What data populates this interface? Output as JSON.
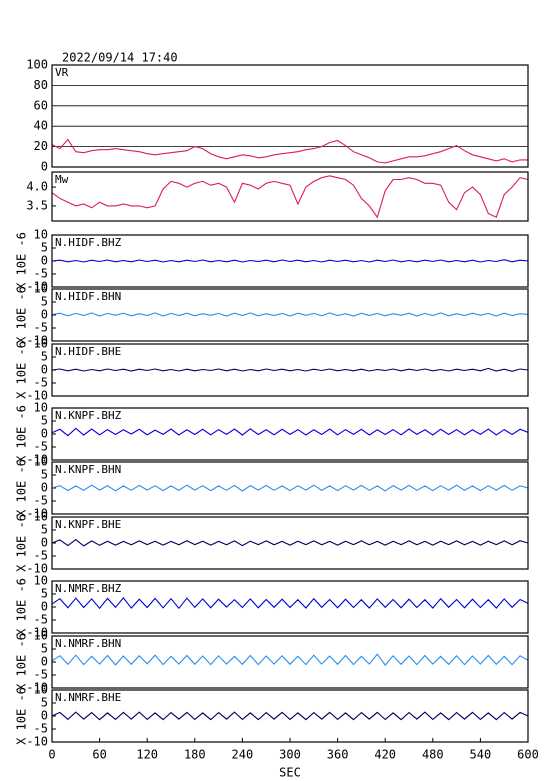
{
  "title": "2022/09/14 17:40",
  "x_label": "SEC",
  "xlim": [
    0,
    600
  ],
  "xticks": [
    0,
    60,
    120,
    180,
    240,
    300,
    360,
    420,
    480,
    540,
    600
  ],
  "x": [
    0,
    10,
    20,
    30,
    40,
    50,
    60,
    70,
    80,
    90,
    100,
    110,
    120,
    130,
    140,
    150,
    160,
    170,
    180,
    190,
    200,
    210,
    220,
    230,
    240,
    250,
    260,
    270,
    280,
    290,
    300,
    310,
    320,
    330,
    340,
    350,
    360,
    370,
    380,
    390,
    400,
    410,
    420,
    430,
    440,
    450,
    460,
    470,
    480,
    490,
    500,
    510,
    520,
    530,
    540,
    550,
    560,
    570,
    580,
    590,
    600
  ],
  "chart_data": [
    {
      "type": "line",
      "ylim": [
        0,
        100
      ],
      "yticks": [
        0,
        20,
        40,
        60,
        80,
        100
      ],
      "grid": true,
      "series": [
        {
          "name": "VR",
          "color": "#dc1e50",
          "values": [
            22,
            18,
            27,
            15,
            14,
            16,
            17,
            17,
            18,
            17,
            16,
            15,
            13,
            12,
            13,
            14,
            15,
            16,
            20,
            18,
            13,
            10,
            8,
            10,
            12,
            11,
            9,
            10,
            12,
            13,
            14,
            15,
            17,
            18,
            20,
            24,
            26,
            21,
            15,
            12,
            9,
            5,
            4,
            6,
            8,
            10,
            10,
            11,
            13,
            15,
            18,
            21,
            16,
            12,
            10,
            8,
            6,
            8,
            5,
            7,
            7
          ]
        }
      ]
    },
    {
      "type": "line",
      "ylim": [
        3.1,
        4.4
      ],
      "yticks": [
        3.5,
        {
          "value": 4,
          "label": "4.0"
        }
      ],
      "grid": false,
      "series": [
        {
          "name": "Mw",
          "color": "#dc1e50",
          "values": [
            3.85,
            3.7,
            3.6,
            3.5,
            3.55,
            3.45,
            3.6,
            3.5,
            3.5,
            3.55,
            3.5,
            3.5,
            3.45,
            3.5,
            3.95,
            4.15,
            4.1,
            4.0,
            4.1,
            4.15,
            4.05,
            4.1,
            4.0,
            3.6,
            4.1,
            4.05,
            3.95,
            4.1,
            4.15,
            4.1,
            4.05,
            3.55,
            4.0,
            4.15,
            4.25,
            4.3,
            4.25,
            4.2,
            4.05,
            3.7,
            3.5,
            3.2,
            3.9,
            4.2,
            4.2,
            4.25,
            4.2,
            4.1,
            4.1,
            4.05,
            3.6,
            3.4,
            3.85,
            4.0,
            3.8,
            3.3,
            3.2,
            3.8,
            4.0,
            4.25,
            4.2
          ]
        }
      ]
    },
    {
      "type": "line",
      "ylim": [
        -10,
        10
      ],
      "yticks": [
        -10,
        -5,
        0,
        5,
        10
      ],
      "y_label": "X 10E -6",
      "series": [
        {
          "name": "N.HIDF.BHZ",
          "color": "#0000d0",
          "values": [
            0,
            0.3,
            -0.3,
            0.2,
            -0.4,
            0.3,
            -0.2,
            0.4,
            -0.3,
            0.2,
            -0.3,
            0.4,
            -0.2,
            0.3,
            -0.4,
            0.2,
            -0.3,
            0.3,
            -0.2,
            0.4,
            -0.3,
            0.2,
            -0.3,
            0.3,
            -0.4,
            0.2,
            -0.2,
            0.3,
            -0.3,
            0.4,
            -0.2,
            0.3,
            -0.3,
            0.2,
            -0.4,
            0.3,
            -0.2,
            0.3,
            -0.3,
            0.2,
            -0.4,
            0.3,
            -0.2,
            0.4,
            -0.3,
            0.2,
            -0.3,
            0.3,
            -0.2,
            0.4,
            -0.3,
            0.2,
            -0.3,
            0.3,
            -0.4,
            0.2,
            -0.2,
            0.5,
            -0.3,
            0.3,
            0
          ]
        }
      ]
    },
    {
      "type": "line",
      "ylim": [
        -10,
        10
      ],
      "yticks": [
        -10,
        -5,
        0,
        5,
        10
      ],
      "y_label": "X 10E -6",
      "series": [
        {
          "name": "N.HIDF.BHN",
          "color": "#2a8cf0",
          "values": [
            0.2,
            0.7,
            -0.3,
            0.6,
            -0.2,
            0.8,
            -0.4,
            0.6,
            -0.1,
            0.7,
            -0.3,
            0.5,
            -0.2,
            0.8,
            -0.4,
            0.6,
            -0.2,
            0.7,
            -0.3,
            0.5,
            -0.1,
            0.6,
            -0.4,
            0.7,
            -0.2,
            0.8,
            -0.3,
            0.5,
            -0.2,
            0.6,
            -0.4,
            0.7,
            -0.1,
            0.6,
            -0.3,
            0.8,
            -0.2,
            0.5,
            -0.4,
            0.7,
            -0.2,
            0.6,
            -0.3,
            0.5,
            -0.1,
            0.7,
            -0.4,
            0.6,
            -0.2,
            0.8,
            -0.3,
            0.5,
            -0.2,
            0.7,
            -0.1,
            0.6,
            -0.4,
            0.7,
            -0.2,
            0.5,
            0.2
          ]
        }
      ]
    },
    {
      "type": "line",
      "ylim": [
        -10,
        10
      ],
      "yticks": [
        -10,
        -5,
        0,
        5,
        10
      ],
      "y_label": "X 10E -6",
      "series": [
        {
          "name": "N.HIDF.BHE",
          "color": "#000060",
          "values": [
            0,
            0.4,
            -0.3,
            0.3,
            -0.4,
            0.2,
            -0.3,
            0.4,
            -0.2,
            0.3,
            -0.4,
            0.3,
            -0.2,
            0.4,
            -0.3,
            0.2,
            -0.4,
            0.3,
            -0.3,
            0.2,
            -0.2,
            0.4,
            -0.3,
            0.3,
            -0.4,
            0.2,
            -0.3,
            0.4,
            -0.2,
            0.3,
            -0.3,
            0.2,
            -0.4,
            0.3,
            -0.2,
            0.4,
            -0.3,
            0.2,
            -0.3,
            0.3,
            -0.4,
            0.2,
            -0.2,
            0.4,
            -0.3,
            0.3,
            -0.2,
            0.4,
            -0.3,
            0.2,
            -0.4,
            0.3,
            -0.2,
            0.3,
            -0.3,
            0.6,
            -0.4,
            0.3,
            -0.5,
            0.4,
            0
          ]
        }
      ]
    },
    {
      "type": "line",
      "ylim": [
        -10,
        10
      ],
      "yticks": [
        -10,
        -5,
        0,
        5,
        10
      ],
      "y_label": "X 10E -6",
      "series": [
        {
          "name": "N.KNPF.BHZ",
          "color": "#0000d0",
          "values": [
            0.5,
            1.8,
            -0.6,
            2.2,
            -0.4,
            1.9,
            -0.3,
            1.7,
            -0.2,
            1.6,
            0,
            1.8,
            -0.3,
            1.5,
            -0.1,
            1.9,
            -0.4,
            1.6,
            -0.2,
            1.8,
            -0.3,
            1.7,
            -0.1,
            1.9,
            -0.4,
            2.0,
            -0.2,
            1.6,
            -0.3,
            1.8,
            -0.1,
            1.7,
            -0.4,
            1.6,
            -0.2,
            1.9,
            -0.3,
            1.7,
            -0.1,
            1.8,
            -0.4,
            1.6,
            -0.2,
            1.7,
            -0.3,
            1.9,
            -0.1,
            1.6,
            -0.4,
            1.8,
            -0.2,
            1.7,
            -0.3,
            1.6,
            -0.1,
            1.9,
            -0.4,
            1.7,
            -0.2,
            1.8,
            0.6
          ]
        }
      ]
    },
    {
      "type": "line",
      "ylim": [
        -10,
        10
      ],
      "yticks": [
        -10,
        -5,
        0,
        5,
        10
      ],
      "y_label": "X 10E -6",
      "series": [
        {
          "name": "N.KNPF.BHN",
          "color": "#2a8cf0",
          "values": [
            0,
            0.9,
            -1.0,
            0.8,
            -0.9,
            1.1,
            -0.8,
            0.9,
            -1.1,
            0.8,
            -0.9,
            1.0,
            -0.8,
            0.9,
            -1.0,
            0.8,
            -0.9,
            1.1,
            -0.8,
            0.9,
            -1.0,
            0.8,
            -0.9,
            1.0,
            -1.1,
            0.9,
            -0.8,
            1.0,
            -0.9,
            0.8,
            -1.0,
            0.9,
            -0.8,
            1.1,
            -0.9,
            0.8,
            -1.0,
            0.9,
            -0.8,
            1.0,
            -0.9,
            0.8,
            -1.1,
            0.9,
            -0.8,
            1.0,
            -0.9,
            0.8,
            -1.0,
            0.9,
            -0.8,
            1.1,
            -0.9,
            0.8,
            -1.0,
            0.9,
            -0.8,
            1.0,
            -0.9,
            0.8,
            0
          ]
        }
      ]
    },
    {
      "type": "line",
      "ylim": [
        -10,
        10
      ],
      "yticks": [
        -10,
        -5,
        0,
        5,
        10
      ],
      "y_label": "X 10E -6",
      "series": [
        {
          "name": "N.KNPF.BHE",
          "color": "#000060",
          "values": [
            0,
            1.2,
            -1.0,
            1.3,
            -1.1,
            0.8,
            -0.9,
            0.7,
            -0.8,
            0.6,
            -0.7,
            0.8,
            -0.6,
            0.7,
            -0.8,
            0.6,
            -0.7,
            0.9,
            -0.6,
            0.7,
            -0.8,
            0.6,
            -0.7,
            0.8,
            -1.0,
            0.7,
            -0.6,
            0.8,
            -0.7,
            0.6,
            -0.8,
            0.7,
            -0.6,
            0.8,
            -0.7,
            0.6,
            -0.8,
            0.7,
            -0.6,
            0.8,
            -0.7,
            0.6,
            -0.8,
            0.7,
            -0.6,
            0.8,
            -0.7,
            0.6,
            -0.8,
            0.7,
            -0.6,
            0.8,
            -0.7,
            0.6,
            -0.8,
            0.7,
            -0.6,
            0.8,
            -0.7,
            0.9,
            0
          ]
        }
      ]
    },
    {
      "type": "line",
      "ylim": [
        -10,
        10
      ],
      "yticks": [
        -10,
        -5,
        0,
        5,
        10
      ],
      "y_label": "X 10E -6",
      "series": [
        {
          "name": "N.NMRF.BHZ",
          "color": "#0000d0",
          "values": [
            1.2,
            3.2,
            -0.3,
            3.4,
            -0.2,
            3.1,
            -0.5,
            3.3,
            -0.1,
            3.5,
            -0.4,
            3.0,
            -0.2,
            3.3,
            -0.3,
            3.2,
            -0.5,
            3.4,
            -0.1,
            3.1,
            -0.3,
            3.0,
            0,
            2.8,
            -0.2,
            3.1,
            -0.3,
            2.9,
            -0.1,
            3.0,
            -0.2,
            2.8,
            -0.4,
            3.2,
            -0.1,
            2.9,
            -0.3,
            3.0,
            -0.2,
            2.8,
            -0.4,
            3.1,
            -0.1,
            2.9,
            -0.3,
            3.0,
            -0.2,
            2.8,
            -0.4,
            3.2,
            -0.1,
            2.9,
            -0.3,
            3.0,
            -0.2,
            2.8,
            -0.4,
            3.1,
            -0.1,
            2.9,
            1.4
          ]
        }
      ]
    },
    {
      "type": "line",
      "ylim": [
        -10,
        10
      ],
      "yticks": [
        -10,
        -5,
        0,
        5,
        10
      ],
      "y_label": "X 10E -6",
      "series": [
        {
          "name": "N.NMRF.BHN",
          "color": "#2a8cf0",
          "values": [
            0.5,
            2.4,
            -0.9,
            2.6,
            -1.0,
            2.2,
            -0.8,
            2.5,
            -1.1,
            2.3,
            -0.9,
            2.4,
            -0.7,
            2.6,
            -1.0,
            2.2,
            -0.8,
            2.5,
            -0.9,
            2.3,
            -1.0,
            2.4,
            -0.8,
            2.2,
            -0.9,
            2.5,
            -1.0,
            2.3,
            -0.8,
            2.4,
            -0.9,
            2.2,
            -1.0,
            2.6,
            -0.8,
            2.3,
            -0.9,
            2.5,
            -1.0,
            2.2,
            -0.8,
            3.0,
            -1.2,
            2.4,
            -0.9,
            2.3,
            -1.0,
            2.5,
            -0.8,
            2.2,
            -0.9,
            2.4,
            -1.0,
            2.3,
            -0.8,
            2.5,
            -0.9,
            2.2,
            -1.0,
            2.4,
            0.7
          ]
        }
      ]
    },
    {
      "type": "line",
      "ylim": [
        -10,
        10
      ],
      "yticks": [
        -10,
        -5,
        0,
        5,
        10
      ],
      "y_label": "X 10E -6",
      "series": [
        {
          "name": "N.NMRF.BHE",
          "color": "#000060",
          "values": [
            0,
            1.4,
            -1.3,
            1.5,
            -1.2,
            1.3,
            -1.4,
            1.2,
            -1.3,
            1.4,
            -1.2,
            1.5,
            -1.3,
            1.2,
            -1.4,
            1.3,
            -1.2,
            1.4,
            -1.3,
            1.2,
            -1.4,
            1.3,
            -1.2,
            1.5,
            -1.3,
            1.2,
            -1.4,
            1.3,
            -1.2,
            1.4,
            -1.3,
            1.2,
            -1.4,
            1.3,
            -1.2,
            1.4,
            -1.3,
            1.2,
            -1.4,
            1.3,
            -1.2,
            1.4,
            -1.3,
            1.2,
            -1.4,
            1.3,
            -1.2,
            1.5,
            -1.3,
            1.2,
            -1.4,
            1.3,
            -1.2,
            1.4,
            -1.3,
            1.2,
            -1.4,
            1.3,
            -1.2,
            1.4,
            0
          ]
        }
      ]
    }
  ]
}
